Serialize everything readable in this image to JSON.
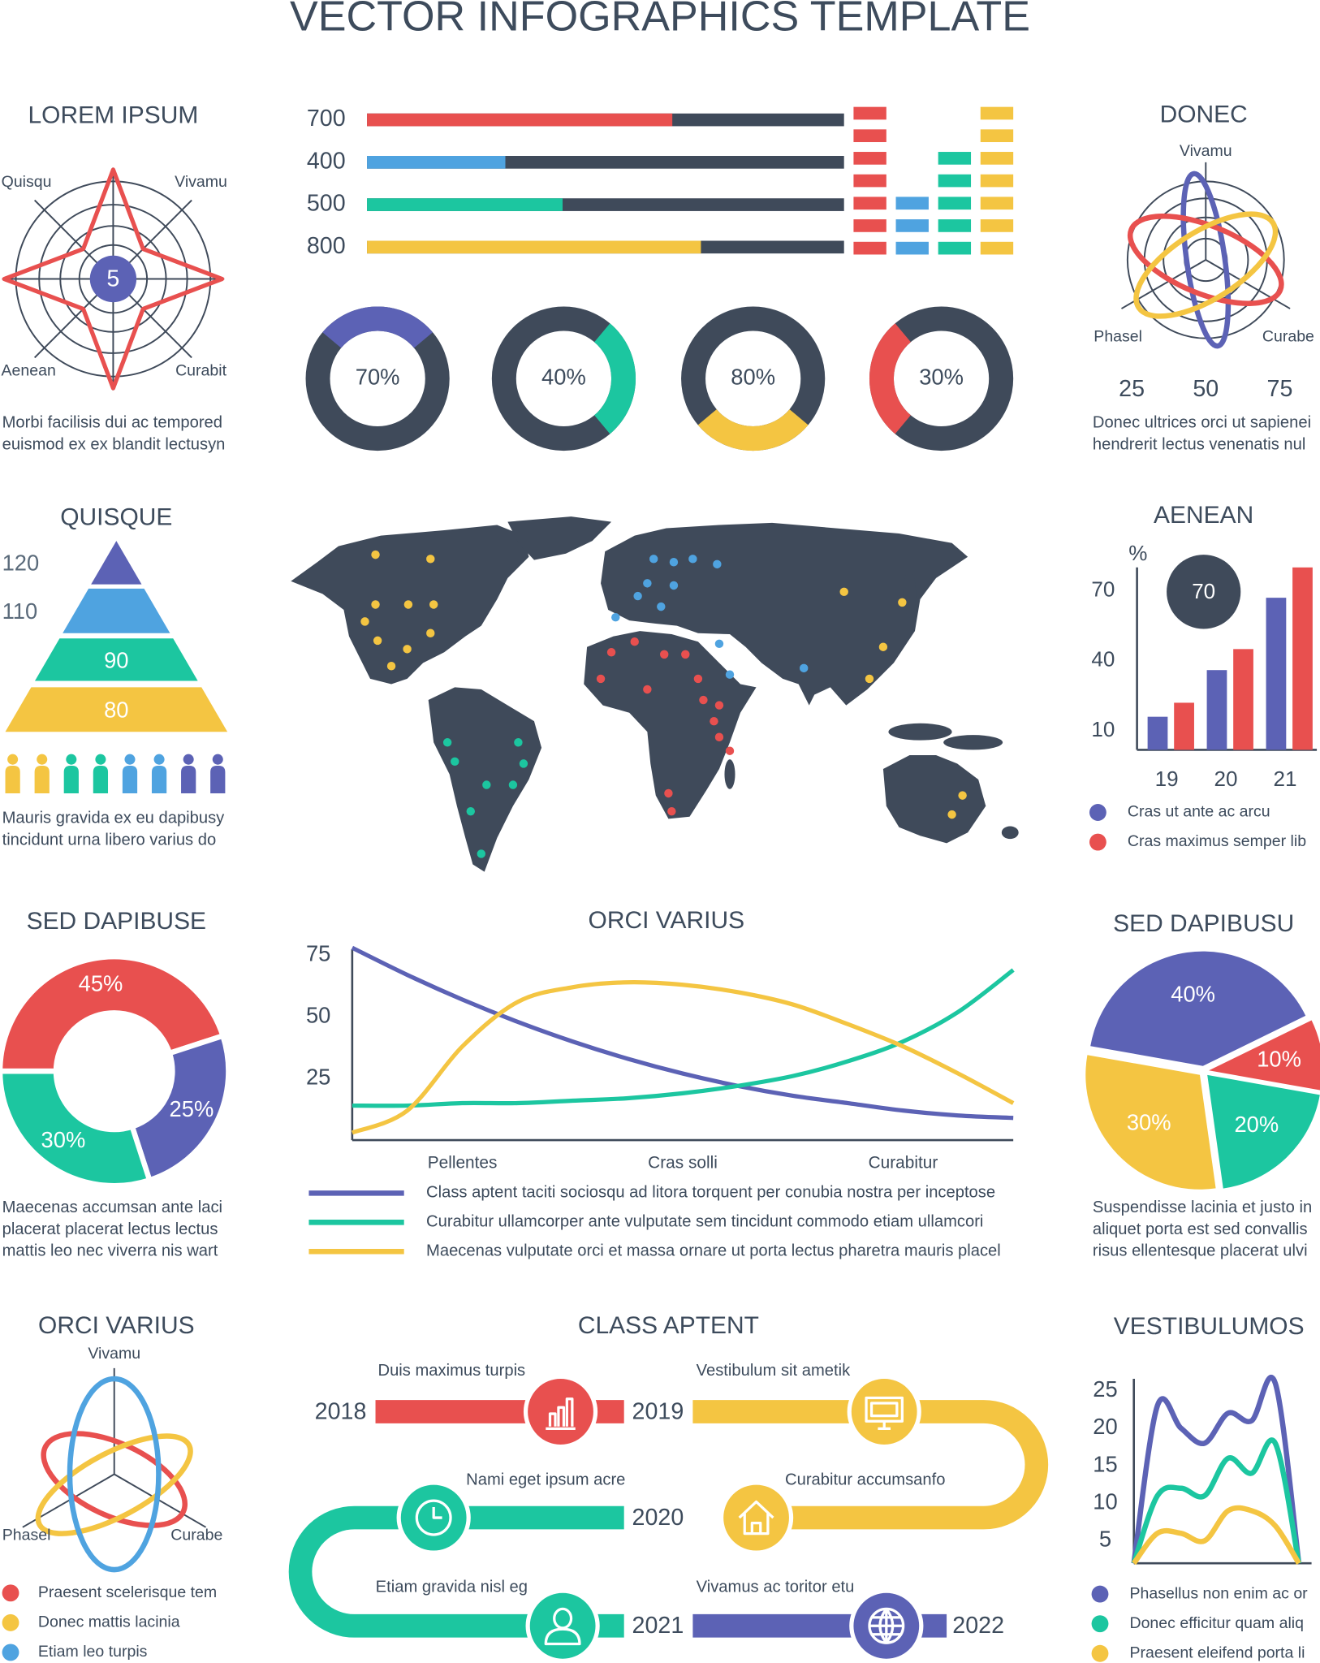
{
  "title": "VECTOR INFOGRAPHICS TEMPLATE",
  "chart_data": [
    {
      "type": "radar_star",
      "title": "LOREM IPSUM",
      "axes": [
        "Quisqu",
        "Vivamu",
        "Aenean",
        "Curabit"
      ],
      "center_label": "5",
      "color": "#e8504f",
      "caption": [
        "Morbi facilisis dui ac tempored",
        "euismod ex ex blandit lectusyn"
      ]
    },
    {
      "type": "progress",
      "categories": [
        "700",
        "400",
        "500",
        "800"
      ],
      "values": [
        64,
        29,
        41,
        70
      ],
      "xlim": [
        0,
        100
      ],
      "colors": [
        "#e8504f",
        "#4fa3e0",
        "#1cc6a0",
        "#f4c542"
      ],
      "levels": [
        7,
        3,
        5,
        7
      ]
    },
    {
      "type": "donuts",
      "values": [
        70,
        40,
        80,
        30
      ],
      "value_labels": [
        "70%",
        "40%",
        "80%",
        "30%"
      ],
      "colors": [
        "#5c62b5",
        "#1cc6a0",
        "#f4c542",
        "#e8504f"
      ]
    },
    {
      "type": "pyramid",
      "title": "QUISQUE",
      "values": [
        120,
        110,
        90,
        80
      ],
      "colors": [
        "#5c62b5",
        "#4fa3e0",
        "#1cc6a0",
        "#f4c542"
      ],
      "caption": [
        "Mauris gravida ex eu dapibusy",
        "tincidunt urna libero varius do"
      ]
    },
    {
      "type": "grouped_bar",
      "title": "AENEAN",
      "y_label": "%",
      "categories": [
        "19",
        "20",
        "21"
      ],
      "series": [
        {
          "name": "Cras ut ante ac arcu",
          "color": "#5c62b5",
          "values": [
            16,
            36,
            67
          ]
        },
        {
          "name": "Cras maximus semper lib",
          "color": "#e8504f",
          "values": [
            22,
            45,
            80
          ]
        }
      ],
      "ylim": [
        0,
        80
      ],
      "yticks": [
        10,
        40,
        70
      ],
      "annotation": "70"
    },
    {
      "type": "radar_loops",
      "title": "DONEC",
      "axes": [
        "Vivamu",
        "Phasel",
        "Curabe"
      ],
      "ticks": [
        25,
        50,
        75
      ],
      "colors": [
        "#5c62b5",
        "#e8504f",
        "#f4c542"
      ],
      "caption": [
        "Donec ultrices orci ut sapienei",
        "hendrerit lectus venenatis nul"
      ]
    },
    {
      "type": "donut",
      "title": "SED DAPIBUSE",
      "values": [
        45,
        25,
        30
      ],
      "value_labels": [
        "45%",
        "25%",
        "30%"
      ],
      "colors": [
        "#e8504f",
        "#5c62b5",
        "#1cc6a0"
      ],
      "caption": [
        "Maecenas accumsan ante laci",
        "placerat placerat lectus lectus",
        "mattis leo nec viverra nis wart"
      ]
    },
    {
      "type": "line",
      "title": "ORCI VARIUS",
      "x": [
        0,
        1,
        2,
        3,
        4,
        5,
        6,
        7,
        8,
        9,
        10,
        11,
        12
      ],
      "xlim": [
        0,
        12
      ],
      "xticks": [
        {
          "value": 2,
          "label": "Pellentes"
        },
        {
          "value": 6,
          "label": "Cras solli"
        },
        {
          "value": 10,
          "label": "Curabitur"
        }
      ],
      "ylim": [
        0,
        80
      ],
      "yticks": [
        25,
        50,
        75
      ],
      "series": [
        {
          "name": "Class aptent taciti sociosqu ad litora torquent per conubia nostra per inceptose",
          "color": "#5c62b5",
          "values": [
            78,
            67,
            57,
            48,
            40,
            33,
            27,
            22,
            18,
            15,
            12,
            10,
            9
          ]
        },
        {
          "name": "Curabitur ullamcorper ante vulputate sem tincidunt commodo etiam ullamcori",
          "color": "#1cc6a0",
          "values": [
            14,
            14,
            15,
            15,
            16,
            17,
            19,
            22,
            26,
            32,
            40,
            52,
            69
          ]
        },
        {
          "name": "Maecenas vulputate orci et massa ornare ut porta lectus pharetra mauris placel",
          "color": "#f4c542",
          "values": [
            3,
            12,
            38,
            56,
            62,
            64,
            63,
            60,
            55,
            47,
            38,
            27,
            15
          ]
        }
      ]
    },
    {
      "type": "pie",
      "title": "SED DAPIBUSU",
      "values": [
        40,
        10,
        20,
        30
      ],
      "value_labels": [
        "40%",
        "10%",
        "20%",
        "30%"
      ],
      "colors": [
        "#5c62b5",
        "#e8504f",
        "#1cc6a0",
        "#f4c542"
      ],
      "caption": [
        "Suspendisse lacinia et justo in",
        "aliquet porta est sed convallis",
        "risus ellentesque placerat ulvi"
      ]
    },
    {
      "type": "radar_loops",
      "title": "ORCI VARIUS",
      "axes": [
        "Vivamu",
        "Phasel",
        "Curabe"
      ],
      "series": [
        {
          "name": "Praesent scelerisque tem",
          "color": "#e8504f"
        },
        {
          "name": "Donec mattis lacinia",
          "color": "#f4c542"
        },
        {
          "name": "Etiam leo turpis",
          "color": "#4fa3e0"
        }
      ]
    },
    {
      "type": "timeline",
      "title": "CLASS APTENT",
      "years": [
        "2018",
        "2019",
        "2020",
        "2021",
        "2022"
      ],
      "captions": [
        "Duis maximus turpis",
        "Vestibulum sit ametik",
        "Nami eget ipsum acre",
        "Curabitur accumsanfo",
        "Etiam gravida nisl eg",
        "Vivamus ac toritor etu"
      ],
      "icon_colors": [
        "#e8504f",
        "#f4c542",
        "#1cc6a0",
        "#f4c542",
        "#1cc6a0",
        "#5c62b5"
      ]
    },
    {
      "type": "line",
      "title": "VESTIBULUMOS",
      "ylim": [
        2,
        28
      ],
      "yticks": [
        5,
        10,
        15,
        20,
        25
      ],
      "series": [
        {
          "name": "Phasellus non enim ac or",
          "color": "#5c62b5",
          "values": [
            2,
            23,
            20,
            18,
            22,
            21,
            26,
            2
          ]
        },
        {
          "name": "Donec efficitur quam aliq",
          "color": "#1cc6a0",
          "values": [
            2,
            11,
            12,
            11,
            16,
            14,
            18,
            2
          ]
        },
        {
          "name": "Praesent eleifend porta li",
          "color": "#f4c542",
          "values": [
            2,
            6,
            6,
            5,
            9,
            9,
            7,
            2
          ]
        }
      ]
    }
  ]
}
